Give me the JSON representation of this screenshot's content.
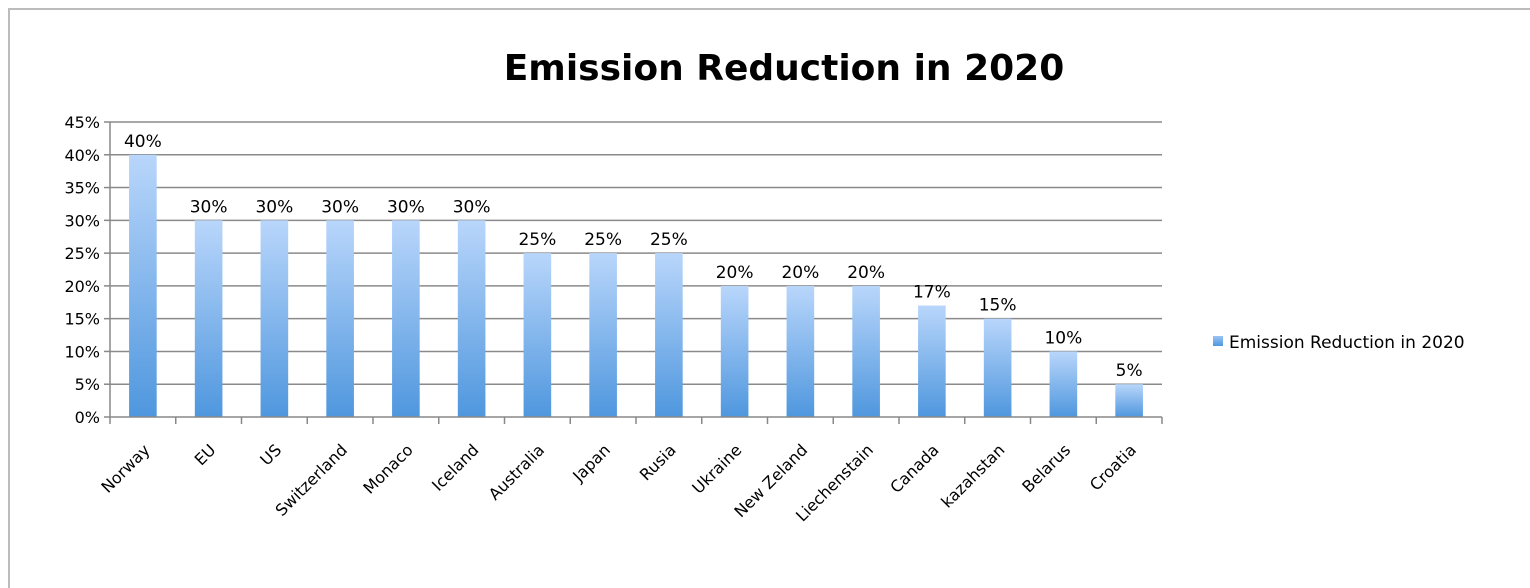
{
  "chart_data": {
    "type": "bar",
    "title": "Emission Reduction in 2020",
    "xlabel": "",
    "ylabel": "",
    "categories": [
      "Norway",
      "EU",
      "US",
      "Switzerland",
      "Monaco",
      "Iceland",
      "Australia",
      "Japan",
      "Rusia",
      "Ukraine",
      "New Zeland",
      "Liechenstain",
      "Canada",
      "kazahstan",
      "Belarus",
      "Croatia"
    ],
    "series": [
      {
        "name": "Emission Reduction in 2020",
        "values": [
          40,
          30,
          30,
          30,
          30,
          30,
          25,
          25,
          25,
          20,
          20,
          20,
          17,
          15,
          10,
          5
        ]
      }
    ],
    "data_labels": [
      "40%",
      "30%",
      "30%",
      "30%",
      "30%",
      "30%",
      "25%",
      "25%",
      "25%",
      "20%",
      "20%",
      "20%",
      "17%",
      "15%",
      "10%",
      "5%"
    ],
    "y_ticks": [
      "0%",
      "5%",
      "10%",
      "15%",
      "20%",
      "25%",
      "30%",
      "35%",
      "40%",
      "45%"
    ],
    "ylim": [
      0,
      45
    ],
    "grid": true,
    "legend": "right",
    "colors": {
      "bar_top": "#b9d6fb",
      "bar_bottom": "#4f97de",
      "grid": "#8a8a8a",
      "axis": "#888888"
    }
  }
}
